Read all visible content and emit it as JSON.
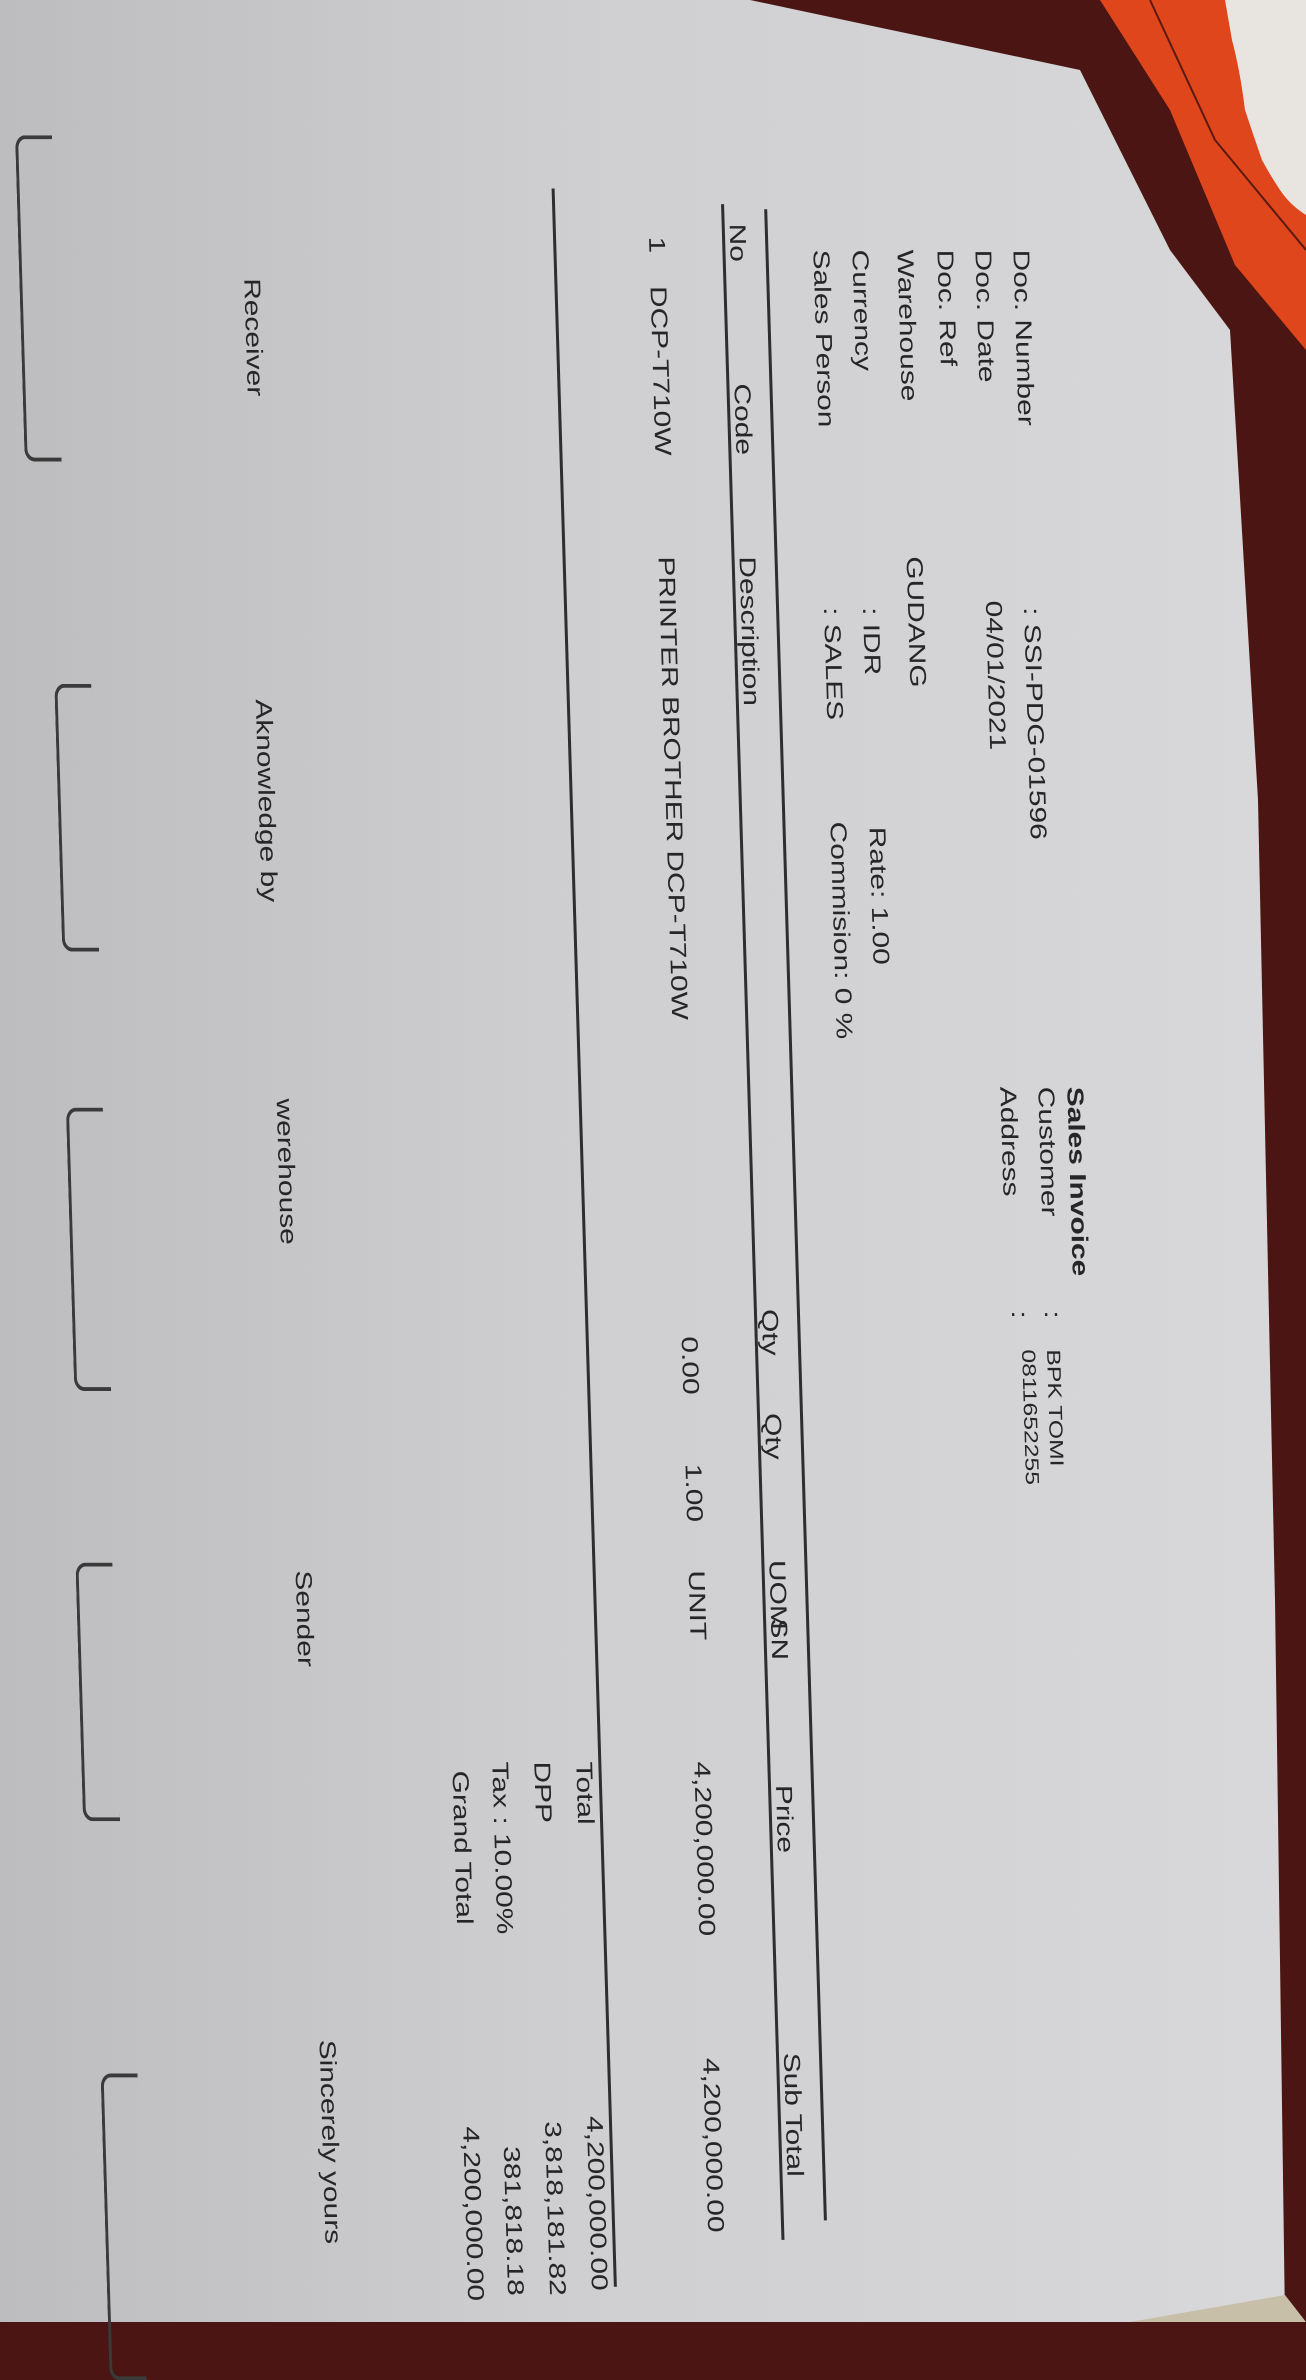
{
  "title": "Sales Invoice",
  "header_left": {
    "doc_number": {
      "label": "Doc. Number",
      "value": ": SSI-PDG-01596"
    },
    "doc_date": {
      "label": "Doc. Date",
      "value": "04/01/2021"
    },
    "doc_ref": {
      "label": "Doc. Ref",
      "value": ""
    },
    "warehouse": {
      "label": "Warehouse",
      "value": "GUDANG"
    },
    "currency": {
      "label": "Currency",
      "value": ": IDR",
      "rate": "Rate: 1.00"
    },
    "sales_person": {
      "label": "Sales Person",
      "value": ": SALES",
      "commission": "Commision: 0 %"
    }
  },
  "header_right": {
    "customer": {
      "label": "Customer",
      "colon": ":",
      "value": "BPK TOMI"
    },
    "address": {
      "label": "Address",
      "colon": ":",
      "value": "0811652255"
    }
  },
  "table": {
    "columns": [
      "No",
      "Code",
      "Description",
      "Qty",
      "Qty",
      "UOM",
      "SN",
      "Price",
      "Sub Total"
    ],
    "rows": [
      {
        "no": "1",
        "code": "DCP-T710W",
        "description": "PRINTER BROTHER DCP-T710W",
        "qty1": "0.00",
        "qty2": "1.00",
        "uom": "UNIT",
        "sn": "",
        "price": "4,200,000.00",
        "subtotal": "4,200,000.00"
      }
    ]
  },
  "totals": {
    "total": {
      "label": "Total",
      "value": "4,200,000.00"
    },
    "dpp": {
      "label": "DPP",
      "value": "3,818,181.82"
    },
    "tax": {
      "label": "Tax : 10.00%",
      "value": "381,818.18"
    },
    "grand_total": {
      "label": "Grand Total",
      "value": "4,200,000.00"
    }
  },
  "signatures": {
    "receiver": "Receiver",
    "acknowledge": "Aknowledge by",
    "warehouse": "werehouse",
    "sender": "Sender",
    "sincerely": "Sincerely yours"
  },
  "colors": {
    "paper": "#d0d0d2",
    "ink": "#262626",
    "background": "#4a1512",
    "card": "#e0461c"
  }
}
